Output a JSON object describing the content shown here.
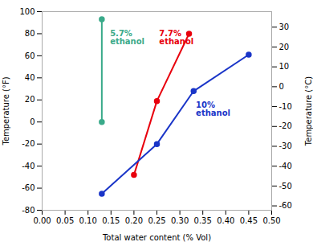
{
  "chart_data": {
    "type": "line",
    "xlabel": "Total water content (% Vol)",
    "ylabel": "Temperature (°F)",
    "y2label": "Temperature (°C)",
    "xlim": [
      0.0,
      0.5
    ],
    "ylim": [
      -80,
      100
    ],
    "y2lim": [
      -62.2,
      37.8
    ],
    "xticks": [
      {
        "value": 0.0,
        "label": "0.00"
      },
      {
        "value": 0.05,
        "label": "0.05"
      },
      {
        "value": 0.1,
        "label": "0.10"
      },
      {
        "value": 0.15,
        "label": "0.15"
      },
      {
        "value": 0.2,
        "label": "0.20"
      },
      {
        "value": 0.25,
        "label": "0.25"
      },
      {
        "value": 0.3,
        "label": "0.30"
      },
      {
        "value": 0.35,
        "label": "0.35"
      },
      {
        "value": 0.4,
        "label": "0.40"
      },
      {
        "value": 0.45,
        "label": "0.45"
      },
      {
        "value": 0.5,
        "label": "0.50"
      }
    ],
    "yticks": [
      -80,
      -60,
      -40,
      -20,
      0,
      20,
      40,
      60,
      80,
      100
    ],
    "y2ticks": [
      -60,
      -50,
      -40,
      -30,
      -20,
      -10,
      0,
      10,
      20,
      30
    ],
    "grid": false,
    "marker": "circle",
    "series": [
      {
        "name": "5.7%\nethanol",
        "color": "#3aaa8a",
        "x": [
          0.13,
          0.13
        ],
        "values": [
          0,
          93
        ]
      },
      {
        "name": "7.7%\nethanol",
        "color": "#e8000d",
        "x": [
          0.2,
          0.25,
          0.32
        ],
        "values": [
          -48,
          19,
          80
        ]
      },
      {
        "name": "10%\nethanol",
        "color": "#1a35c8",
        "x": [
          0.13,
          0.25,
          0.33,
          0.45
        ],
        "values": [
          -65,
          -20,
          28,
          61
        ]
      }
    ],
    "annotations": [
      {
        "x": 0.148,
        "y": 83,
        "text": "5.7%\nethanol",
        "color": "#3aaa8a"
      },
      {
        "x": 0.255,
        "y": 83,
        "text": "7.7%\nethanol",
        "color": "#e8000d"
      },
      {
        "x": 0.335,
        "y": 18,
        "text": "10%\nethanol",
        "color": "#1a35c8"
      }
    ]
  }
}
